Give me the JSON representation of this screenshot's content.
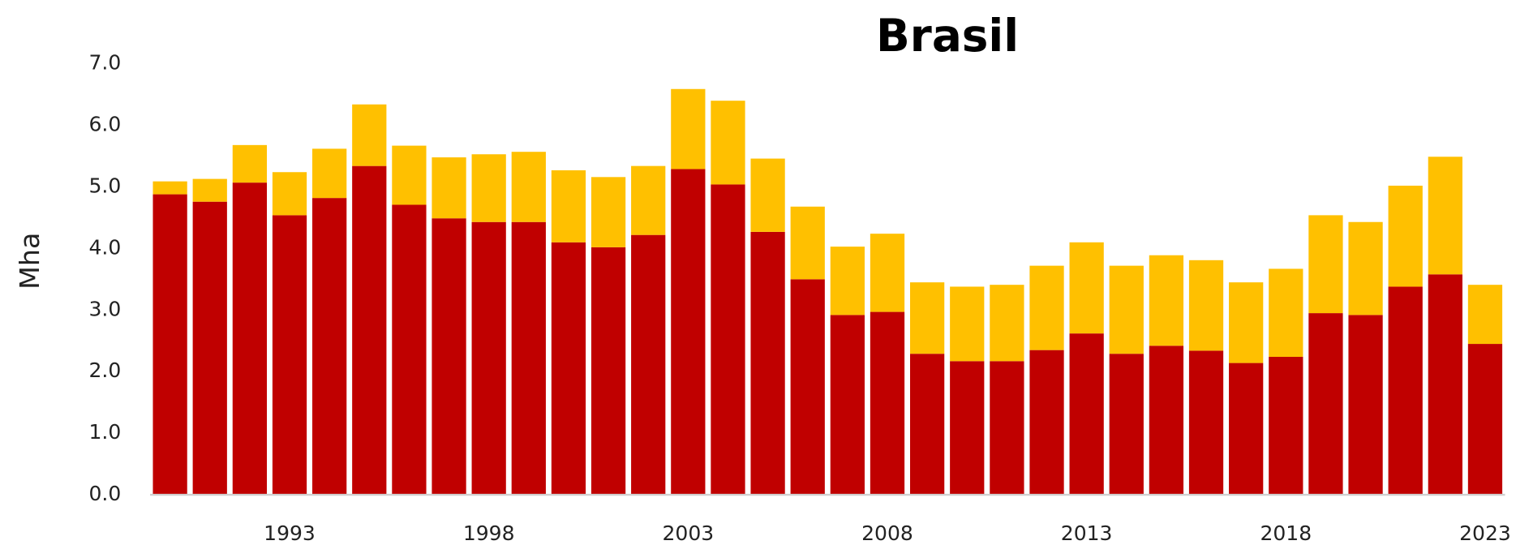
{
  "chart_data": {
    "type": "stacked_bar",
    "title": "Brasil",
    "y_label": "Mha",
    "categories": [
      null,
      null,
      null,
      "1993",
      null,
      null,
      null,
      null,
      "1998",
      null,
      null,
      null,
      null,
      "2003",
      null,
      null,
      null,
      null,
      "2008",
      null,
      null,
      null,
      null,
      "2013",
      null,
      null,
      null,
      null,
      "2018",
      null,
      null,
      null,
      null,
      "2023"
    ],
    "series": [
      {
        "color": "#c00000",
        "values": [
          4.88,
          4.76,
          5.07,
          4.54,
          4.82,
          5.34,
          4.71,
          4.49,
          4.43,
          4.43,
          4.1,
          4.02,
          4.22,
          5.29,
          5.04,
          4.27,
          3.5,
          2.92,
          2.97,
          2.29,
          2.17,
          2.17,
          2.35,
          2.62,
          2.29,
          2.42,
          2.34,
          2.14,
          2.24,
          2.95,
          2.92,
          3.38,
          3.58,
          2.45
        ]
      },
      {
        "color": "#ffc000",
        "values": [
          0.21,
          0.37,
          0.61,
          0.7,
          0.8,
          1.0,
          0.96,
          0.99,
          1.1,
          1.14,
          1.17,
          1.14,
          1.12,
          1.3,
          1.36,
          1.19,
          1.18,
          1.11,
          1.27,
          1.16,
          1.21,
          1.24,
          1.37,
          1.48,
          1.43,
          1.47,
          1.47,
          1.31,
          1.43,
          1.59,
          1.51,
          1.64,
          1.91,
          0.96
        ]
      }
    ],
    "ylim": [
      0,
      7
    ],
    "yticks": [
      {
        "value": 0,
        "label": "0.0"
      },
      {
        "value": 1,
        "label": "1.0"
      },
      {
        "value": 2,
        "label": "2.0"
      },
      {
        "value": 3,
        "label": "3.0"
      },
      {
        "value": 4,
        "label": "4.0"
      },
      {
        "value": 5,
        "label": "5.0"
      },
      {
        "value": 6,
        "label": "6.0"
      },
      {
        "value": 7,
        "label": "7.0"
      }
    ],
    "grid": false
  }
}
